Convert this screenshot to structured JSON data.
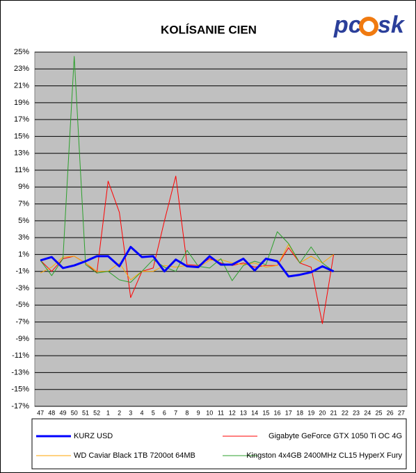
{
  "chart_data": {
    "type": "line",
    "title": "KOLÍSANIE CIEN",
    "logo": [
      "pc",
      "sk"
    ],
    "categories": [
      "47",
      "48",
      "49",
      "50",
      "51",
      "52",
      "1",
      "2",
      "3",
      "4",
      "5",
      "6",
      "7",
      "8",
      "9",
      "10",
      "11",
      "12",
      "13",
      "14",
      "15",
      "16",
      "17",
      "18",
      "19",
      "20",
      "21",
      "22",
      "23",
      "24",
      "25",
      "26",
      "27"
    ],
    "ylim": [
      -17,
      25
    ],
    "yticks": [
      {
        "value": 25,
        "label": "25%"
      },
      {
        "value": 23,
        "label": "23%"
      },
      {
        "value": 21,
        "label": "21%"
      },
      {
        "value": 19,
        "label": "19%"
      },
      {
        "value": 17,
        "label": "17%"
      },
      {
        "value": 15,
        "label": "15%"
      },
      {
        "value": 13,
        "label": "13%"
      },
      {
        "value": 11,
        "label": "11%"
      },
      {
        "value": 9,
        "label": "9%"
      },
      {
        "value": 7,
        "label": "7%"
      },
      {
        "value": 5,
        "label": "5%"
      },
      {
        "value": 3,
        "label": "3%"
      },
      {
        "value": 1,
        "label": "1%"
      },
      {
        "value": -1,
        "label": "-1%"
      },
      {
        "value": -3,
        "label": "-3%"
      },
      {
        "value": -5,
        "label": "-5%"
      },
      {
        "value": -7,
        "label": "-7%"
      },
      {
        "value": -9,
        "label": "-9%"
      },
      {
        "value": -11,
        "label": "-11%"
      },
      {
        "value": -13,
        "label": "-13%"
      },
      {
        "value": -15,
        "label": "-15%"
      },
      {
        "value": -17,
        "label": "-17%"
      }
    ],
    "grid": true,
    "series": [
      {
        "name": "KURZ USD",
        "color": "#0000ff",
        "width": 3,
        "values": [
          0.3,
          0.7,
          -0.6,
          -0.3,
          0.2,
          0.8,
          0.8,
          -0.4,
          1.9,
          0.7,
          0.8,
          -1.0,
          0.4,
          -0.4,
          -0.5,
          0.8,
          -0.2,
          -0.2,
          0.5,
          -0.9,
          0.5,
          0.2,
          -1.6,
          -1.4,
          -1.1,
          -0.4,
          -1.0,
          null,
          null,
          null,
          null,
          null,
          null
        ]
      },
      {
        "name": "Gigabyte GeForce GTX 1050 Ti OC 4G",
        "color": "#ff0000",
        "width": 1,
        "values": [
          0.3,
          -1.0,
          0.5,
          0.8,
          0.0,
          -1.2,
          9.7,
          6.0,
          -4.1,
          -1.0,
          -0.6,
          5.0,
          10.3,
          -0.2,
          -0.3,
          0.5,
          0.0,
          -0.3,
          0.0,
          -0.5,
          -0.3,
          -0.3,
          1.8,
          0.0,
          -0.5,
          -7.2,
          1.0,
          null,
          null,
          null,
          null,
          null,
          null
        ]
      },
      {
        "name": "WD Caviar Black 1TB 7200ot 64MB",
        "color": "#ffa500",
        "width": 1,
        "values": [
          -1.2,
          -0.5,
          0.7,
          0.8,
          0.0,
          -1.0,
          -1.0,
          0.0,
          -2.0,
          -1.0,
          -1.0,
          -0.3,
          -0.5,
          -0.3,
          -0.5,
          0.3,
          0.4,
          0.0,
          -0.2,
          0.0,
          -0.5,
          -0.3,
          2.2,
          0.0,
          0.8,
          0.0,
          1.0,
          null,
          null,
          null,
          null,
          null,
          null
        ]
      },
      {
        "name": "Kingston 4x4GB 2400MHz CL15 HyperX Fury",
        "color": "#2ca02c",
        "width": 1,
        "values": [
          0.3,
          -1.5,
          0.5,
          24.5,
          -0.2,
          -1.2,
          -1.0,
          -2.0,
          -2.3,
          -1.0,
          0.4,
          -0.5,
          -1.0,
          1.5,
          -0.4,
          -0.6,
          0.5,
          -2.1,
          -0.3,
          0.2,
          -0.2,
          3.7,
          2.3,
          0.0,
          1.9,
          0.0,
          -1.0,
          null,
          null,
          null,
          null,
          null,
          null
        ]
      }
    ]
  }
}
